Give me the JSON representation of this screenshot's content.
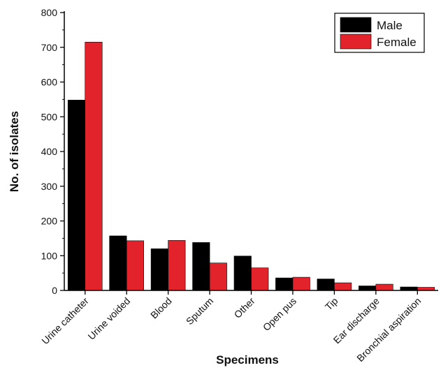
{
  "chart_data": {
    "type": "bar",
    "xlabel": "Specimens",
    "ylabel": "No. of isolates",
    "ylim": [
      0,
      800
    ],
    "yticks": [
      0,
      100,
      200,
      300,
      400,
      500,
      600,
      700,
      800
    ],
    "categories": [
      "Urine catheter",
      "Urine voided",
      "Blood",
      "Sputum",
      "Other",
      "Open pus",
      "Tip",
      "Ear discharge",
      "Bronchial aspiration"
    ],
    "series": [
      {
        "name": "Male",
        "color": "#000000",
        "values": [
          548,
          157,
          120,
          138,
          99,
          36,
          33,
          13,
          10
        ]
      },
      {
        "name": "Female",
        "color": "#e3232b",
        "values": [
          715,
          143,
          144,
          79,
          65,
          38,
          22,
          18,
          9
        ]
      }
    ],
    "legend_position": "top-right",
    "grid": false
  }
}
